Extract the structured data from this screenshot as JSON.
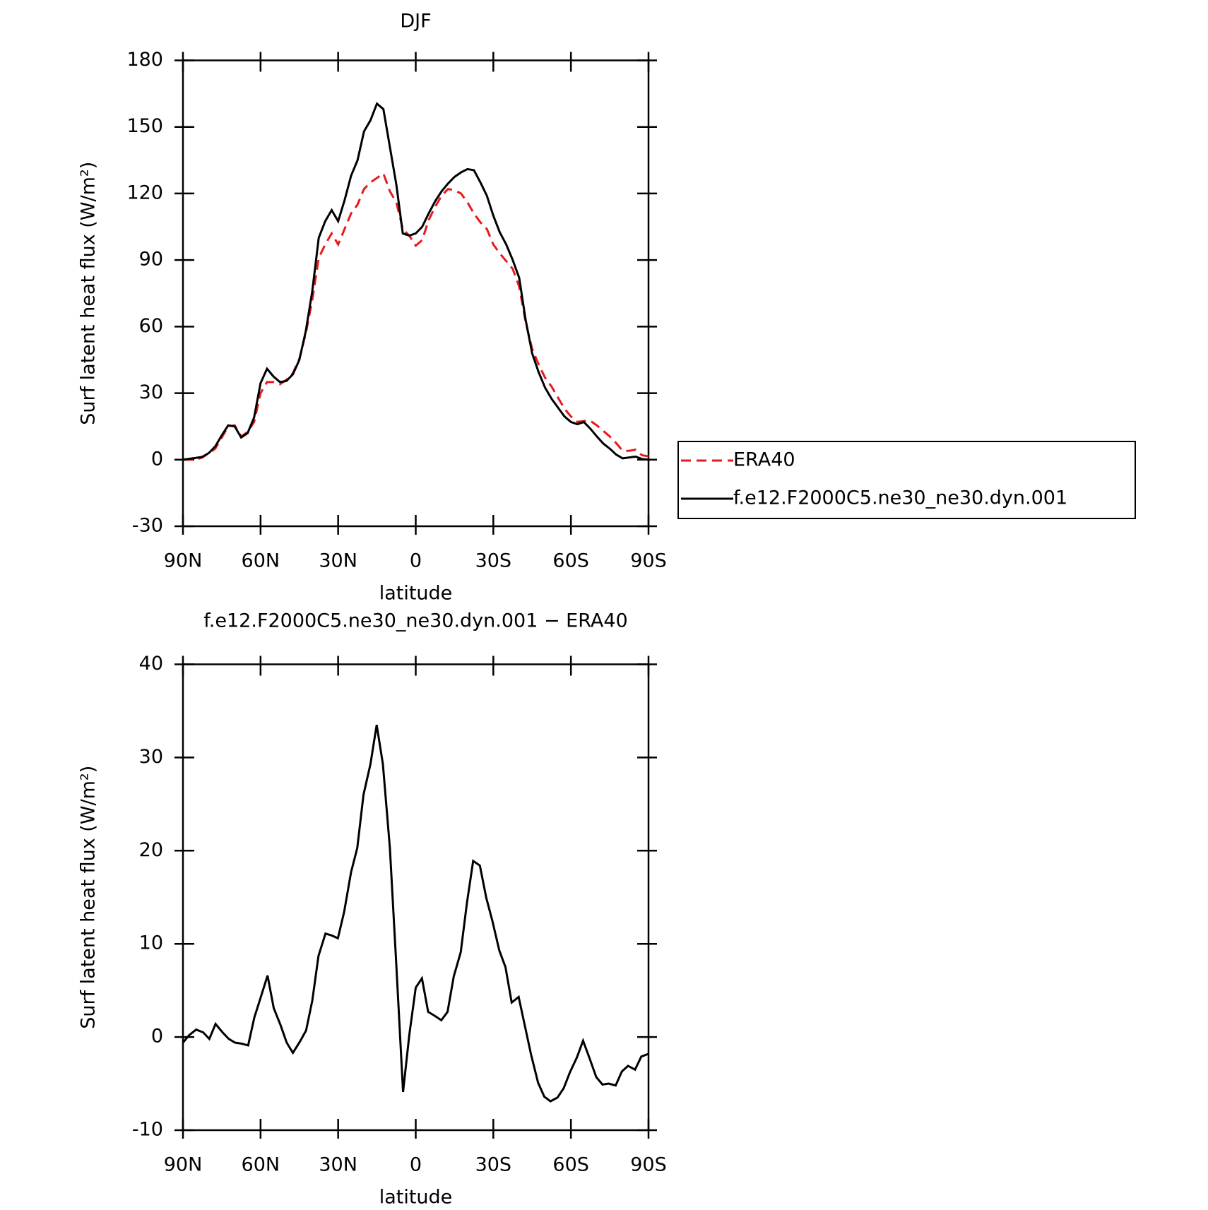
{
  "chart_data": [
    {
      "type": "line",
      "title": "DJF",
      "xlabel": "latitude",
      "ylabel": "Surf latent heat flux (W/m²)",
      "xlim": [
        90,
        -90
      ],
      "ylim": [
        -30,
        180
      ],
      "xticks": [
        {
          "value": 90,
          "label": "90N"
        },
        {
          "value": 60,
          "label": "60N"
        },
        {
          "value": 30,
          "label": "30N"
        },
        0,
        {
          "value": -30,
          "label": "30S"
        },
        {
          "value": -60,
          "label": "60S"
        },
        {
          "value": -90,
          "label": "90S"
        }
      ],
      "yticks": [
        -30,
        0,
        30,
        60,
        90,
        120,
        150,
        180
      ],
      "legend": "outside-right",
      "x": [
        90,
        87.5,
        85,
        82.5,
        80,
        77.5,
        75,
        72.5,
        70,
        67.5,
        65,
        62.5,
        60,
        57.5,
        55,
        52.5,
        50,
        47.5,
        45,
        42.5,
        40,
        37.5,
        35,
        32.5,
        30,
        27.5,
        25,
        22.5,
        20,
        17.5,
        15,
        12.5,
        10,
        7.5,
        5,
        2.5,
        0,
        -2.5,
        -5,
        -7.5,
        -10,
        -12.5,
        -15,
        -17.5,
        -20,
        -22.5,
        -25,
        -27.5,
        -30,
        -32.5,
        -35,
        -37.5,
        -40,
        -42.5,
        -45,
        -47.5,
        -50,
        -52.5,
        -55,
        -57.5,
        -60,
        -62.5,
        -65,
        -67.5,
        -70,
        -72.5,
        -75,
        -77.5,
        -80,
        -82.5,
        -85,
        -87.5,
        -90
      ],
      "series": [
        {
          "name": "ERA40",
          "color": "#e8191c",
          "dash": true,
          "values": [
            0,
            0,
            0,
            1,
            3,
            5,
            10,
            15,
            15.5,
            10.5,
            12.5,
            17,
            30,
            35,
            35,
            34,
            36,
            39,
            45.5,
            57,
            72,
            91,
            97,
            102,
            97,
            104,
            111,
            115,
            122,
            125,
            127,
            129,
            121,
            116,
            104,
            101,
            96.5,
            99,
            108,
            114,
            119,
            122,
            121.5,
            120,
            116,
            111,
            107,
            104,
            97,
            93,
            89.5,
            86,
            78,
            62,
            50,
            43,
            37,
            33,
            28,
            23,
            19.5,
            17,
            17.5,
            17.5,
            15.5,
            13,
            10.5,
            7.5,
            4,
            4,
            4.5,
            2,
            1.5
          ]
        },
        {
          "name": "f.e12.F2000C5.ne30_ne30.dyn.001",
          "color": "#000000",
          "dash": false,
          "values": [
            0,
            0.4,
            0.8,
            1.3,
            3,
            6,
            11,
            15.5,
            15,
            10,
            12,
            19,
            34.5,
            41,
            37.5,
            35,
            35.5,
            38.5,
            45,
            58,
            76,
            100,
            107.5,
            112.5,
            107.5,
            117,
            128,
            135,
            148,
            153,
            160.5,
            158,
            141,
            124,
            102,
            101,
            102,
            105,
            111,
            116.5,
            121,
            124.5,
            127.5,
            129.5,
            131,
            130.5,
            125,
            119,
            110,
            102.5,
            97,
            90,
            82,
            63,
            48,
            39.5,
            32.5,
            27.5,
            23.5,
            19.5,
            17,
            16,
            17,
            14,
            10.5,
            7.3,
            5,
            2.3,
            0.6,
            1,
            1.4,
            0.3,
            0
          ]
        }
      ]
    },
    {
      "type": "line",
      "title": "f.e12.F2000C5.ne30_ne30.dyn.001 − ERA40",
      "xlabel": "latitude",
      "ylabel": "Surf latent heat flux (W/m²)",
      "xlim": [
        90,
        -90
      ],
      "ylim": [
        -10,
        40
      ],
      "xticks": [
        {
          "value": 90,
          "label": "90N"
        },
        {
          "value": 60,
          "label": "60N"
        },
        {
          "value": 30,
          "label": "30N"
        },
        0,
        {
          "value": -30,
          "label": "30S"
        },
        {
          "value": -60,
          "label": "60S"
        },
        {
          "value": -90,
          "label": "90S"
        }
      ],
      "yticks": [
        -10,
        0,
        10,
        20,
        30,
        40
      ],
      "x": [
        90,
        87.6,
        84.9,
        82.2,
        79.8,
        77.4,
        74.7,
        72.3,
        69.9,
        67.5,
        64.8,
        62.4,
        60,
        57.3,
        54.9,
        52.3,
        49.9,
        47.5,
        44.8,
        42.4,
        40,
        37.6,
        34.9,
        32.5,
        30.1,
        27.7,
        25,
        22.6,
        20.2,
        17.5,
        15.1,
        12.7,
        10,
        7.6,
        4.9,
        2.5,
        0,
        -2.4,
        -4.8,
        -7.2,
        -9.9,
        -12.3,
        -14.7,
        -17.4,
        -19.8,
        -22.2,
        -24.8,
        -27.3,
        -29.6,
        -32.3,
        -34.7,
        -37.1,
        -39.8,
        -42.2,
        -44.6,
        -47.3,
        -49.7,
        -52.1,
        -54.8,
        -57.2,
        -59.6,
        -62.3,
        -64.7,
        -67.1,
        -69.8,
        -72.2,
        -74.6,
        -77.3,
        -79.7,
        -82.1,
        -84.8,
        -87.2,
        -90
      ],
      "series": [
        {
          "color": "#000000",
          "dash": false,
          "values": [
            -0.6,
            0.2,
            0.8,
            0.5,
            -0.2,
            1.4,
            0.5,
            -0.2,
            -0.6,
            -0.7,
            -0.9,
            2.1,
            4.2,
            6.6,
            3.1,
            1.3,
            -0.6,
            -1.7,
            -0.5,
            0.7,
            3.9,
            8.7,
            11.1,
            10.9,
            10.6,
            13.4,
            17.7,
            20.3,
            26,
            29.3,
            33.5,
            29.3,
            20.3,
            8.2,
            -5.9,
            0.2,
            5.3,
            6.3,
            2.7,
            2.3,
            1.8,
            2.7,
            6.5,
            9.1,
            14.4,
            18.9,
            18.4,
            14.9,
            12.5,
            9.3,
            7.5,
            3.7,
            4.3,
            1.2,
            -1.9,
            -4.9,
            -6.4,
            -6.9,
            -6.5,
            -5.5,
            -3.8,
            -2.2,
            -0.4,
            -2.2,
            -4.3,
            -5.1,
            -5,
            -5.2,
            -3.7,
            -3.1,
            -3.5,
            -2.1,
            -1.8
          ]
        }
      ]
    }
  ]
}
